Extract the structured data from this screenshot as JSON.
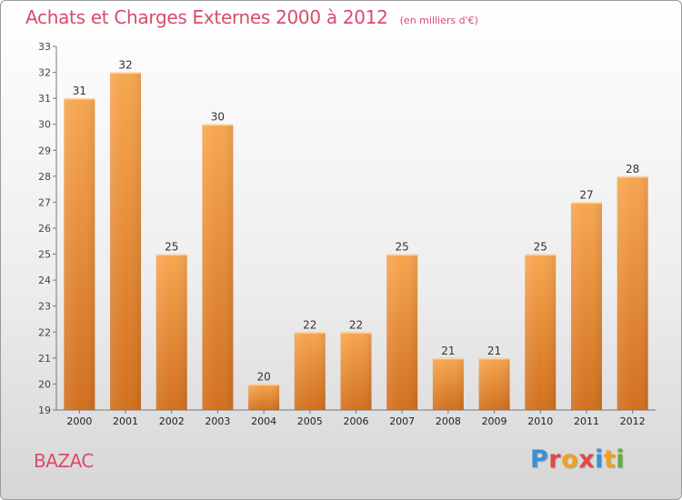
{
  "title": "Achats et Charges Externes 2000 à 2012",
  "subtitle": "(en milliers d'€)",
  "commune": "BAZAC",
  "brand": {
    "letters": [
      "P",
      "r",
      "o",
      "x",
      "i",
      "t",
      "i"
    ],
    "colors": [
      "#3a8fd6",
      "#e04a4a",
      "#f0a020",
      "#e04a4a",
      "#3a8fd6",
      "#f0a020",
      "#5cb030"
    ]
  },
  "colors": {
    "accent": "#d84c6a",
    "bar_top": "#f7a650",
    "bar_bottom": "#d2701e",
    "axis": "#777777"
  },
  "chart_data": {
    "type": "bar",
    "title": "Achats et Charges Externes 2000 à 2012",
    "subtitle": "(en milliers d'€)",
    "categories": [
      "2000",
      "2001",
      "2002",
      "2003",
      "2004",
      "2005",
      "2006",
      "2007",
      "2008",
      "2009",
      "2010",
      "2011",
      "2012"
    ],
    "values": [
      31,
      32,
      25,
      30,
      20,
      22,
      22,
      25,
      21,
      21,
      25,
      27,
      28
    ],
    "data_labels": [
      "31",
      "32",
      "25",
      "30",
      "20",
      "22",
      "22",
      "25",
      "21",
      "21",
      "25",
      "27",
      "28"
    ],
    "ylim": [
      19,
      33
    ],
    "yticks": [
      19,
      20,
      21,
      22,
      23,
      24,
      25,
      26,
      27,
      28,
      29,
      30,
      31,
      32,
      33
    ],
    "grid": false,
    "legend": "none"
  }
}
